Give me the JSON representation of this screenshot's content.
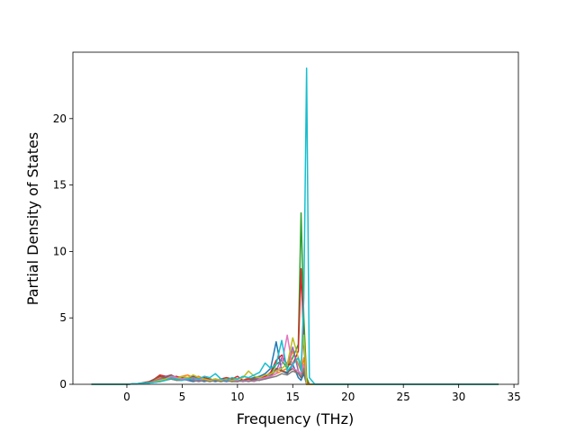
{
  "chart_data": {
    "type": "line",
    "xlabel": "Frequency (THz)",
    "ylabel": "Partial Density of States",
    "x": [
      -3.2,
      0,
      1,
      2,
      3,
      3.5,
      4,
      4.5,
      5,
      5.5,
      6,
      6.5,
      7,
      7.5,
      8,
      8.5,
      9,
      9.5,
      10,
      10.5,
      11,
      11.5,
      12,
      12.5,
      13,
      13.5,
      14,
      14.5,
      15,
      15.5,
      15.75,
      16,
      16.25,
      16.5,
      17,
      33.6
    ],
    "series": [
      {
        "color": "#1f77b4",
        "values": [
          0,
          0,
          0.05,
          0.1,
          0.3,
          0.4,
          0.5,
          0.3,
          0.4,
          0.3,
          0.2,
          0.3,
          0.2,
          0.3,
          0.2,
          0.3,
          0.2,
          0.3,
          0.3,
          0.2,
          0.4,
          0.5,
          0.6,
          0.8,
          1.2,
          3.2,
          1.0,
          0.8,
          1.5,
          0.5,
          0.3,
          0.8,
          0,
          0,
          0,
          0
        ]
      },
      {
        "color": "#ff7f0e",
        "values": [
          0,
          0,
          0.05,
          0.1,
          0.5,
          0.6,
          0.7,
          0.5,
          0.6,
          0.7,
          0.5,
          0.6,
          0.4,
          0.3,
          0.4,
          0.3,
          0.4,
          0.3,
          0.2,
          0.3,
          0.5,
          0.3,
          0.4,
          0.5,
          0.6,
          0.8,
          1.0,
          1.2,
          2.5,
          1.5,
          1.0,
          2.0,
          0,
          0,
          0,
          0
        ]
      },
      {
        "color": "#2ca02c",
        "values": [
          0,
          0,
          0.05,
          0.1,
          0.3,
          0.5,
          0.4,
          0.3,
          0.5,
          0.4,
          0.3,
          0.4,
          0.5,
          0.3,
          0.4,
          0.3,
          0.3,
          0.4,
          0.3,
          0.3,
          0.4,
          0.4,
          0.5,
          0.6,
          0.8,
          1.5,
          1.8,
          1.2,
          2.0,
          3.0,
          12.9,
          5.0,
          0.5,
          0,
          0,
          0
        ]
      },
      {
        "color": "#d62728",
        "values": [
          0,
          0,
          0.05,
          0.1,
          0.7,
          0.6,
          0.5,
          0.6,
          0.4,
          0.5,
          0.6,
          0.4,
          0.5,
          0.4,
          0.3,
          0.4,
          0.5,
          0.4,
          0.6,
          0.3,
          0.4,
          0.3,
          0.5,
          0.6,
          0.9,
          1.8,
          2.2,
          1.5,
          1.5,
          2.5,
          8.7,
          3.0,
          0.2,
          0,
          0,
          0
        ]
      },
      {
        "color": "#9467bd",
        "values": [
          0,
          0,
          0.05,
          0.1,
          0.4,
          0.6,
          0.7,
          0.5,
          0.4,
          0.3,
          0.4,
          0.3,
          0.4,
          0.3,
          0.4,
          0.3,
          0.2,
          0.3,
          0.2,
          0.3,
          0.3,
          0.4,
          0.5,
          0.4,
          0.7,
          1.0,
          2.0,
          1.5,
          2.8,
          1.0,
          0.5,
          1.5,
          0,
          0,
          0,
          0
        ]
      },
      {
        "color": "#8c564b",
        "values": [
          0,
          0,
          0.05,
          0.2,
          0.6,
          0.5,
          0.7,
          0.4,
          0.5,
          0.4,
          0.3,
          0.4,
          0.3,
          0.4,
          0.3,
          0.2,
          0.3,
          0.2,
          0.3,
          0.2,
          0.3,
          0.4,
          0.3,
          0.5,
          0.6,
          1.2,
          1.0,
          0.9,
          1.2,
          0.8,
          0.5,
          1.0,
          0,
          0,
          0,
          0
        ]
      },
      {
        "color": "#e377c2",
        "values": [
          0,
          0,
          0.05,
          0.1,
          0.3,
          0.4,
          0.6,
          0.5,
          0.4,
          0.5,
          0.3,
          0.4,
          0.3,
          0.2,
          0.3,
          0.4,
          0.3,
          0.2,
          0.3,
          0.2,
          0.3,
          0.2,
          0.4,
          0.5,
          0.6,
          0.8,
          1.5,
          3.7,
          1.2,
          1.0,
          0.8,
          1.5,
          0,
          0,
          0,
          0
        ]
      },
      {
        "color": "#7f7f7f",
        "values": [
          0,
          0,
          0.05,
          0.1,
          0.2,
          0.3,
          0.4,
          0.3,
          0.3,
          0.4,
          0.3,
          0.2,
          0.3,
          0.2,
          0.3,
          0.2,
          0.3,
          0.2,
          0.2,
          0.3,
          0.2,
          0.3,
          0.3,
          0.4,
          0.5,
          0.6,
          0.8,
          0.7,
          1.0,
          0.8,
          0.6,
          1.2,
          0,
          0,
          0,
          0
        ]
      },
      {
        "color": "#bcbd22",
        "values": [
          0,
          0,
          0.05,
          0.1,
          0.3,
          0.4,
          0.5,
          0.4,
          0.6,
          0.5,
          0.7,
          0.5,
          0.4,
          0.3,
          0.4,
          0.3,
          0.4,
          0.3,
          0.4,
          0.5,
          1.0,
          0.6,
          0.5,
          0.7,
          0.8,
          1.0,
          1.2,
          1.5,
          3.5,
          2.0,
          1.5,
          3.7,
          0,
          0,
          0,
          0
        ]
      },
      {
        "color": "#17becf",
        "values": [
          0,
          0,
          0.05,
          0.1,
          0.2,
          0.3,
          0.5,
          0.4,
          0.3,
          0.4,
          0.5,
          0.4,
          0.6,
          0.5,
          0.8,
          0.4,
          0.3,
          0.5,
          0.4,
          0.6,
          0.5,
          0.7,
          0.9,
          1.6,
          1.2,
          1.5,
          3.3,
          1.0,
          1.5,
          2.0,
          1.0,
          6.5,
          23.8,
          0.5,
          0,
          0
        ]
      }
    ],
    "xlim": [
      -4.88,
      35.4
    ],
    "xticks": [
      0,
      5,
      10,
      15,
      20,
      25,
      30,
      35
    ],
    "ylim": [
      0,
      25.0
    ],
    "yticks": [
      0,
      5,
      10,
      15,
      20
    ]
  }
}
